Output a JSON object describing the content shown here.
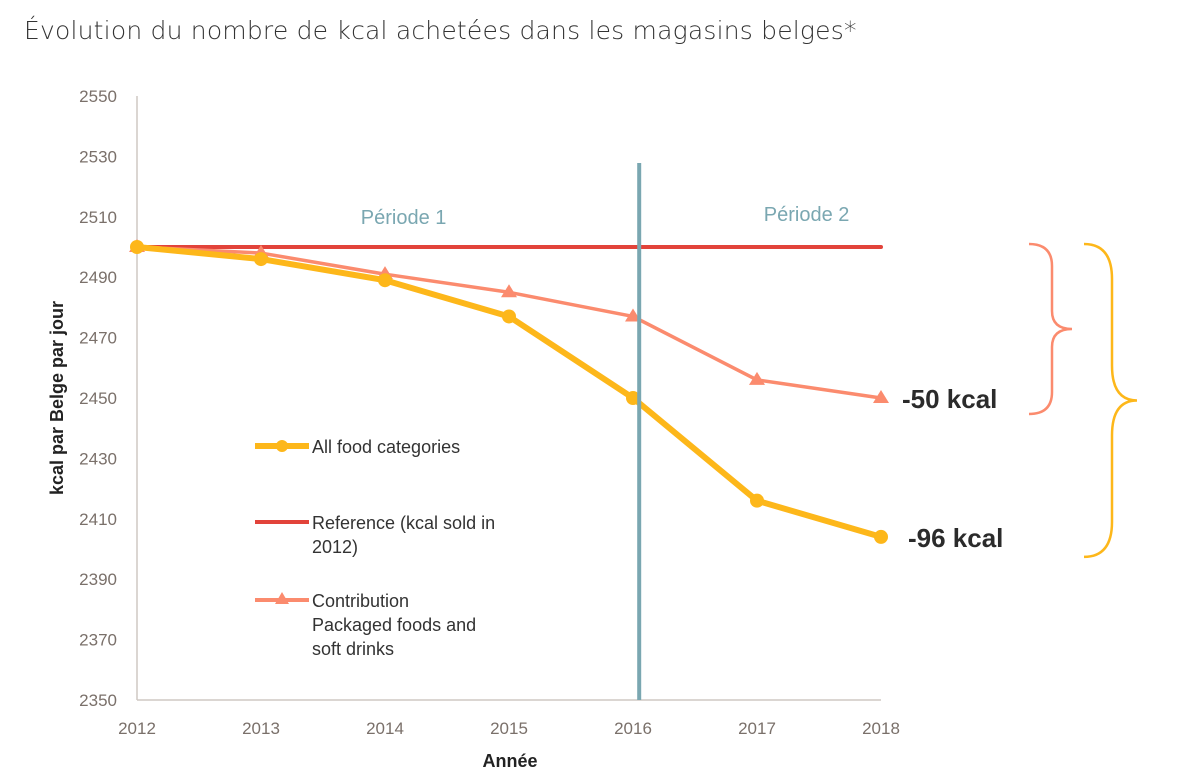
{
  "title": "Évolution du nombre de kcal achetées dans les magasins belges*",
  "chart_data": {
    "type": "line",
    "title": "Évolution du nombre de kcal achetées dans les magasins belges*",
    "xlabel": "Année",
    "ylabel": "kcal par Belge par jour",
    "x": [
      "2012",
      "2013",
      "2014",
      "2015",
      "2016",
      "2017",
      "2018"
    ],
    "ylim": [
      2350,
      2550
    ],
    "yticks": [
      "2550",
      "2530",
      "2510",
      "2490",
      "2470",
      "2450",
      "2430",
      "2410",
      "2390",
      "2370",
      "2350"
    ],
    "grid": false,
    "series": [
      {
        "name": "All food categories",
        "color": "#fdb71a",
        "marker": "circle",
        "values": [
          2500,
          2496,
          2489,
          2477,
          2450,
          2416,
          2404
        ]
      },
      {
        "name": "Reference (kcal sold in 2012)",
        "color": "#e2433a",
        "marker": "none",
        "values": [
          2500,
          2500,
          2500,
          2500,
          2500,
          2500,
          2500
        ]
      },
      {
        "name": "Contribution Packaged foods and soft drinks",
        "color": "#fb8b6e",
        "marker": "triangle",
        "values": [
          2500,
          2498,
          2491,
          2485,
          2477,
          2456,
          2450
        ]
      }
    ],
    "legend": {
      "placement": "lower-left inside plot",
      "entries": [
        {
          "lines": [
            "All food categories"
          ]
        },
        {
          "lines": [
            "Reference (kcal sold in",
            "2012)"
          ]
        },
        {
          "lines": [
            "Contribution",
            "Packaged foods and",
            "soft drinks"
          ]
        }
      ]
    },
    "annotations": {
      "divider_x": 2016.05,
      "divider_color": "#7aa7b1",
      "periods": [
        {
          "label": "Période 1",
          "x": 2014.15,
          "y": 2510
        },
        {
          "label": "Période 2",
          "x": 2017.4,
          "y": 2511
        }
      ],
      "deltas": [
        {
          "label": "-50 kcal",
          "series": "Contribution Packaged foods and soft drinks",
          "color": "#fb8b6e"
        },
        {
          "label": "-96 kcal",
          "series": "All food categories",
          "color": "#fdb71a"
        }
      ]
    }
  }
}
